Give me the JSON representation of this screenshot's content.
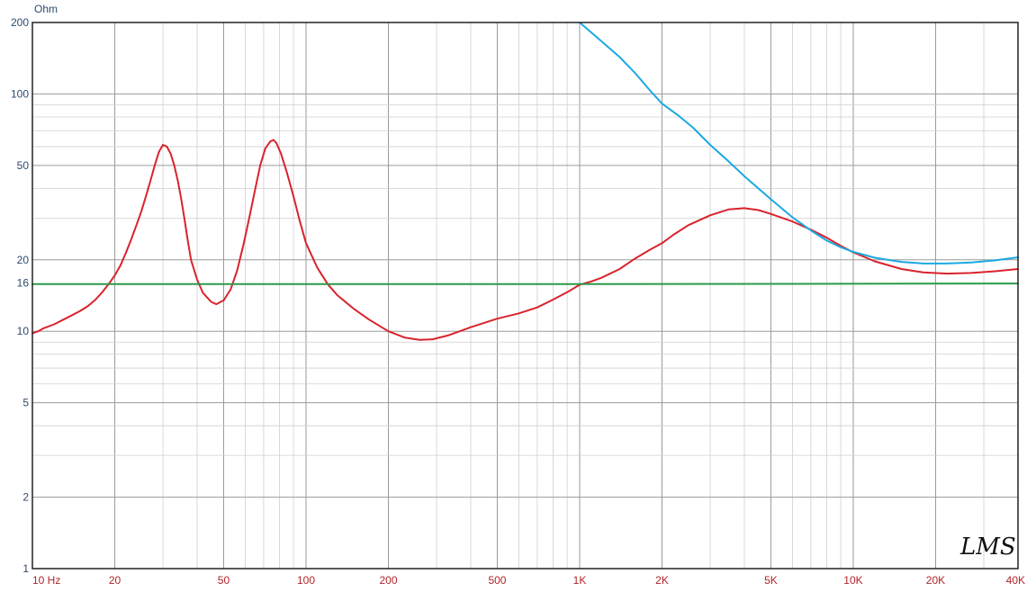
{
  "chart_data": {
    "type": "line",
    "title": "",
    "xscale": "log",
    "yscale": "log",
    "xlim": [
      10,
      40000
    ],
    "ylim": [
      1,
      200
    ],
    "grid": true,
    "y_unit_label": "Ohm",
    "y_ticks": [
      {
        "value": 200,
        "label": "200"
      },
      {
        "value": 100,
        "label": "100"
      },
      {
        "value": 50,
        "label": "50"
      },
      {
        "value": 20,
        "label": "20"
      },
      {
        "value": 16,
        "label": "16"
      },
      {
        "value": 10,
        "label": "10"
      },
      {
        "value": 5,
        "label": "5"
      },
      {
        "value": 2,
        "label": "2"
      },
      {
        "value": 1,
        "label": "1"
      }
    ],
    "x_ticks": [
      {
        "value": 10,
        "label": "10 Hz"
      },
      {
        "value": 20,
        "label": "20"
      },
      {
        "value": 50,
        "label": "50"
      },
      {
        "value": 100,
        "label": "100"
      },
      {
        "value": 200,
        "label": "200"
      },
      {
        "value": 500,
        "label": "500"
      },
      {
        "value": 1000,
        "label": "1K"
      },
      {
        "value": 2000,
        "label": "2K"
      },
      {
        "value": 5000,
        "label": "5K"
      },
      {
        "value": 10000,
        "label": "10K"
      },
      {
        "value": 20000,
        "label": "20K"
      },
      {
        "value": 40000,
        "label": "40K"
      }
    ],
    "series": [
      {
        "color": "#d9232d",
        "points": [
          [
            10,
            9.8
          ],
          [
            10.5,
            10
          ],
          [
            11,
            10.3
          ],
          [
            12,
            10.7
          ],
          [
            13,
            11.2
          ],
          [
            14,
            11.7
          ],
          [
            15,
            12.2
          ],
          [
            16,
            12.8
          ],
          [
            17,
            13.6
          ],
          [
            18,
            14.6
          ],
          [
            19,
            15.8
          ],
          [
            20,
            17.2
          ],
          [
            21,
            19
          ],
          [
            22,
            21.5
          ],
          [
            23,
            24.5
          ],
          [
            24,
            28
          ],
          [
            25,
            32
          ],
          [
            26,
            37
          ],
          [
            27,
            43
          ],
          [
            28,
            50
          ],
          [
            29,
            57
          ],
          [
            30,
            61
          ],
          [
            31,
            60
          ],
          [
            32,
            56
          ],
          [
            33,
            50
          ],
          [
            34,
            43
          ],
          [
            35,
            36
          ],
          [
            36,
            29.5
          ],
          [
            37,
            24
          ],
          [
            38,
            20
          ],
          [
            40,
            16.5
          ],
          [
            42,
            14.5
          ],
          [
            45,
            13.3
          ],
          [
            47,
            13
          ],
          [
            50,
            13.5
          ],
          [
            53,
            15
          ],
          [
            56,
            18
          ],
          [
            59,
            23
          ],
          [
            62,
            30
          ],
          [
            65,
            39
          ],
          [
            68,
            50
          ],
          [
            71,
            59
          ],
          [
            74,
            63
          ],
          [
            76,
            64
          ],
          [
            78,
            62
          ],
          [
            81,
            56
          ],
          [
            85,
            47
          ],
          [
            90,
            37
          ],
          [
            95,
            29
          ],
          [
            100,
            23.5
          ],
          [
            110,
            18.5
          ],
          [
            120,
            15.8
          ],
          [
            130,
            14.2
          ],
          [
            150,
            12.4
          ],
          [
            170,
            11.2
          ],
          [
            200,
            10
          ],
          [
            230,
            9.4
          ],
          [
            260,
            9.2
          ],
          [
            290,
            9.25
          ],
          [
            330,
            9.6
          ],
          [
            400,
            10.4
          ],
          [
            500,
            11.3
          ],
          [
            600,
            11.9
          ],
          [
            700,
            12.6
          ],
          [
            800,
            13.6
          ],
          [
            900,
            14.6
          ],
          [
            1000,
            15.7
          ],
          [
            1100,
            16.2
          ],
          [
            1200,
            16.8
          ],
          [
            1400,
            18.3
          ],
          [
            1600,
            20.3
          ],
          [
            1800,
            22
          ],
          [
            2000,
            23.5
          ],
          [
            2200,
            25.5
          ],
          [
            2500,
            28
          ],
          [
            3000,
            30.8
          ],
          [
            3500,
            32.6
          ],
          [
            4000,
            33
          ],
          [
            4500,
            32.4
          ],
          [
            5000,
            31.2
          ],
          [
            6000,
            29
          ],
          [
            7000,
            26.8
          ],
          [
            8000,
            24.8
          ],
          [
            9000,
            22.9
          ],
          [
            10000,
            21.5
          ],
          [
            12000,
            19.7
          ],
          [
            15000,
            18.3
          ],
          [
            18000,
            17.7
          ],
          [
            22000,
            17.5
          ],
          [
            27000,
            17.6
          ],
          [
            33000,
            17.9
          ],
          [
            40000,
            18.3
          ]
        ]
      },
      {
        "color": "#1ba9e1",
        "points": [
          [
            1000,
            200
          ],
          [
            1200,
            167
          ],
          [
            1400,
            143
          ],
          [
            1600,
            122
          ],
          [
            1800,
            104
          ],
          [
            2000,
            91
          ],
          [
            2300,
            81
          ],
          [
            2600,
            72
          ],
          [
            3000,
            61
          ],
          [
            3500,
            52
          ],
          [
            4000,
            45
          ],
          [
            5000,
            36
          ],
          [
            6000,
            30.2
          ],
          [
            7000,
            26.6
          ],
          [
            8000,
            24.1
          ],
          [
            9000,
            22.6
          ],
          [
            10000,
            21.6
          ],
          [
            12000,
            20.4
          ],
          [
            15000,
            19.6
          ],
          [
            18000,
            19.3
          ],
          [
            22000,
            19.3
          ],
          [
            27000,
            19.5
          ],
          [
            33000,
            19.9
          ],
          [
            40000,
            20.5
          ]
        ]
      },
      {
        "color": "#2a9a4a",
        "points": [
          [
            10,
            15.8
          ],
          [
            100,
            15.8
          ],
          [
            1000,
            15.8
          ],
          [
            10000,
            15.85
          ],
          [
            40000,
            15.9
          ]
        ]
      }
    ]
  },
  "branding": {
    "logo_text": "LMS"
  },
  "colors": {
    "grid_minor": "#cfcfcf",
    "grid_major": "#9a9a9a",
    "frame": "#222222"
  }
}
